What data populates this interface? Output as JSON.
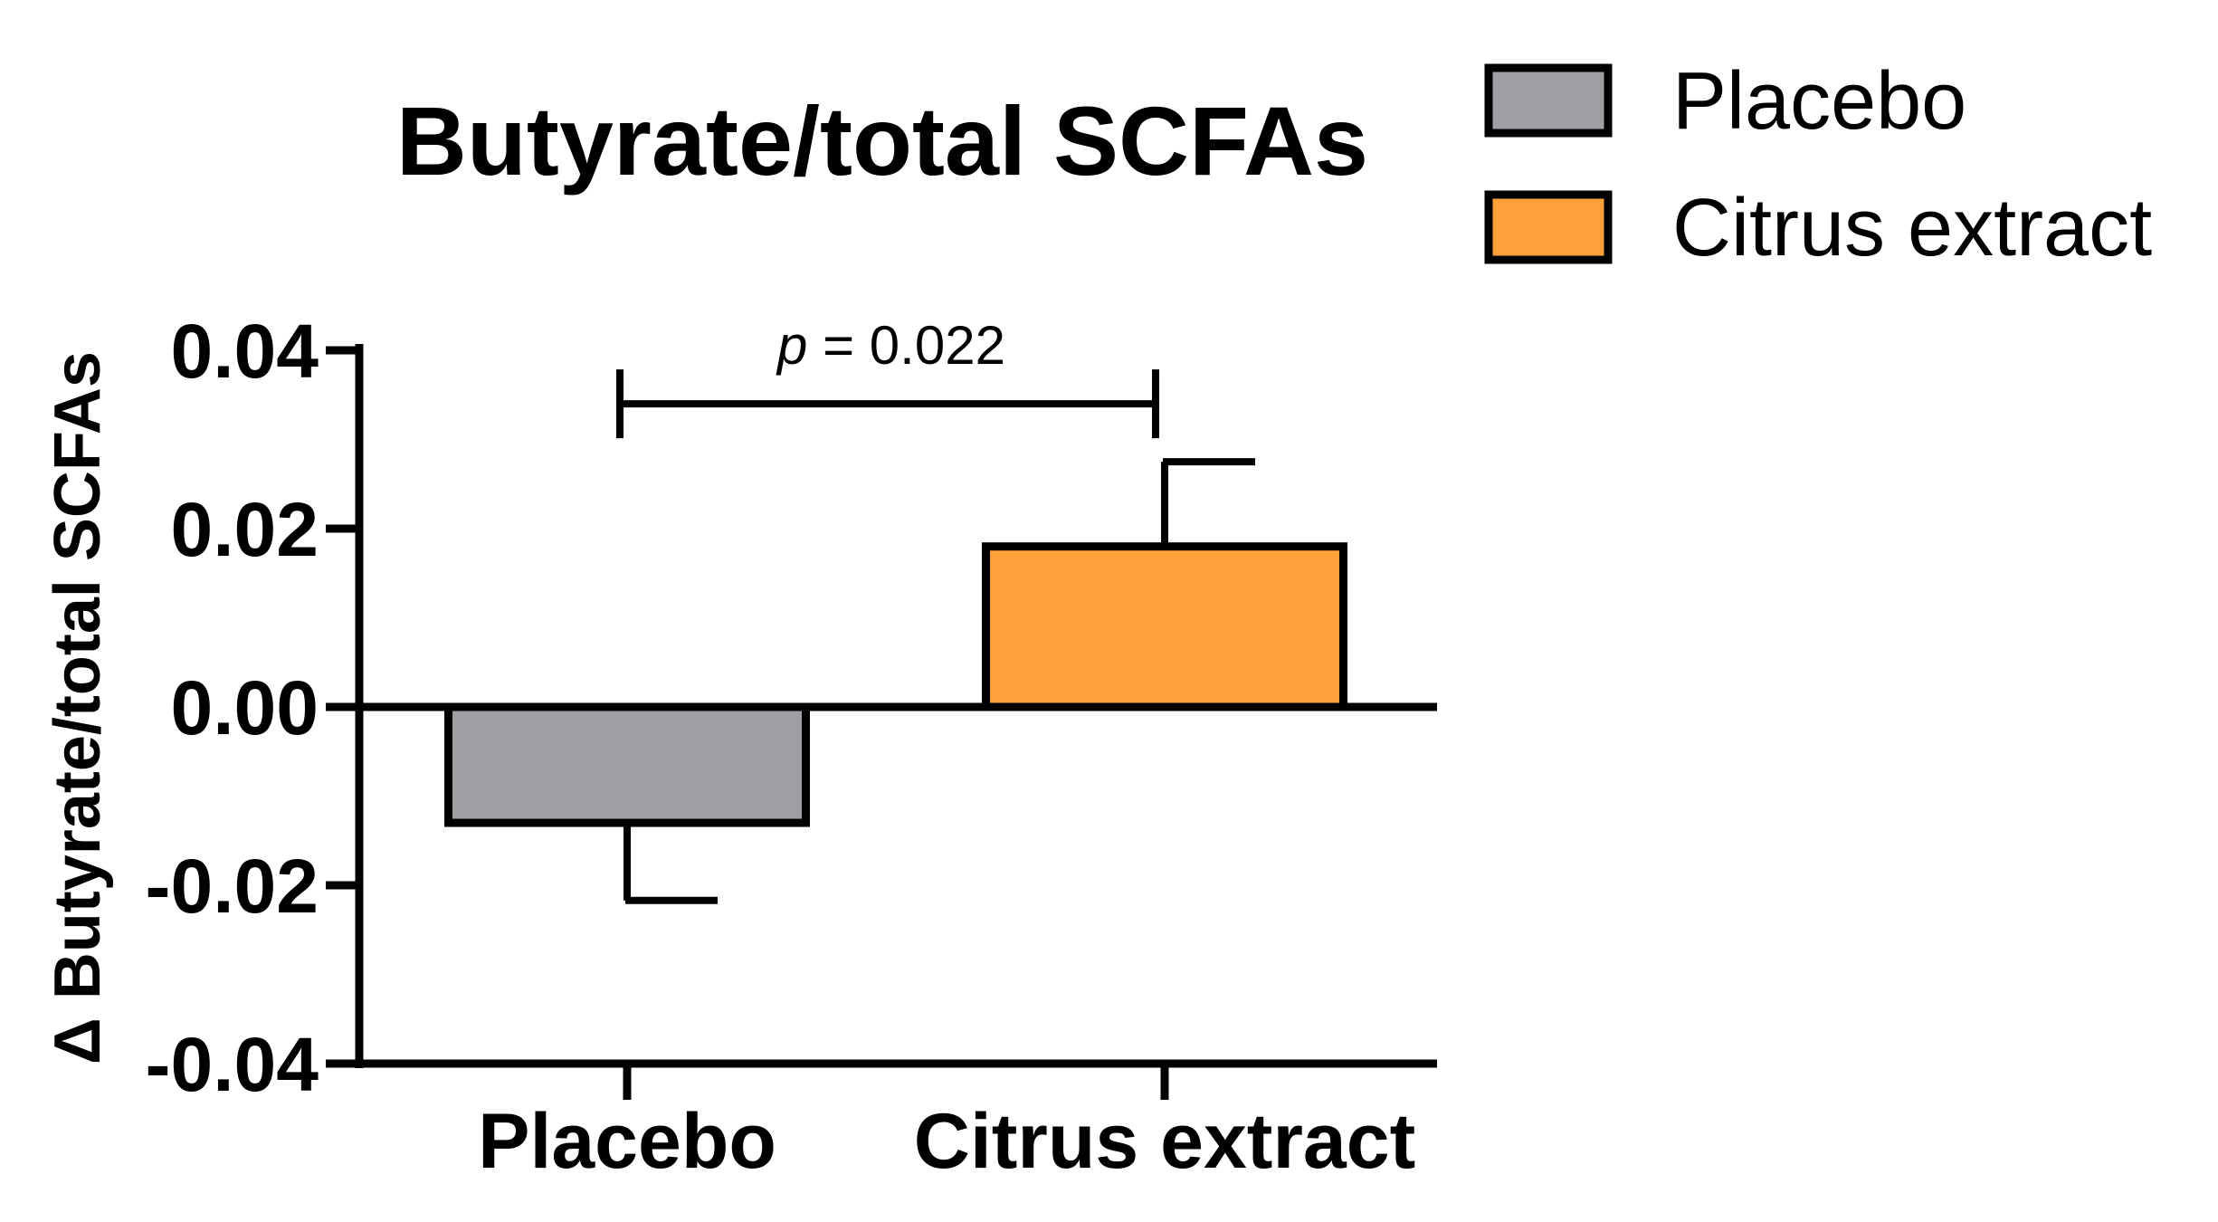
{
  "chart_data": {
    "type": "bar",
    "title": "Butyrate/total SCFAs",
    "ylabel": "Δ Butyrate/total SCFAs",
    "xlabel": "",
    "categories": [
      "Placebo",
      "Citrus extract"
    ],
    "values": [
      -0.013,
      0.018
    ],
    "error": [
      0.0087,
      0.0095
    ],
    "colors": [
      "#a0a0a4",
      "#ffa13a"
    ],
    "ylim": [
      -0.04,
      0.04
    ],
    "yticks": [
      0.04,
      0.02,
      0.0,
      -0.02,
      -0.04
    ],
    "ytick_labels": [
      "0.04",
      "0.02",
      "0.00",
      "-0.02",
      "-0.04"
    ],
    "grid": false,
    "legend": {
      "placement": "top-right",
      "entries": [
        {
          "label": "Placebo",
          "color": "#a0a0a4"
        },
        {
          "label": "Citrus extract",
          "color": "#ffa13a"
        }
      ]
    },
    "annotation": {
      "p_symbol": "p",
      "p_value_text": " = 0.022",
      "bracket_y": 0.034,
      "between": [
        "Placebo",
        "Citrus extract"
      ]
    }
  }
}
